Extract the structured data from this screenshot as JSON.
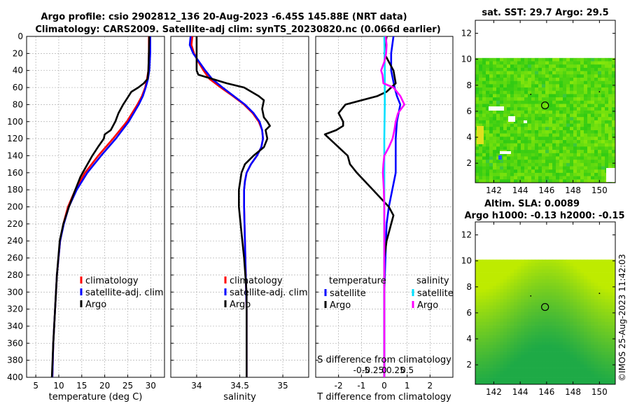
{
  "title_line1": "Argo profile: csio 2902812_136 20-Aug-2023 -6.45S 145.88E (NRT data)",
  "title_line2": "Climatology: CARS2009. Satellite-adj clim: synTS_20230820.nc (0.066d earlier)",
  "stamp": "©IMOS 25-Aug-2023 11:42:03",
  "colors": {
    "climatology": "#ff0000",
    "satellite": "#0000ff",
    "argo": "#000000",
    "s_satellite": "#00e0ff",
    "s_argo": "#ff00ff"
  },
  "chart_data": [
    {
      "type": "line",
      "id": "temperature",
      "xlabel": "temperature (deg C)",
      "ylabel": "",
      "xlim": [
        3,
        33
      ],
      "ylim": [
        400,
        0
      ],
      "xticks": [
        5,
        10,
        15,
        20,
        25,
        30
      ],
      "yticks": [
        0,
        20,
        40,
        60,
        80,
        100,
        120,
        140,
        160,
        180,
        200,
        220,
        240,
        260,
        280,
        300,
        320,
        340,
        360,
        380,
        400
      ],
      "grid": true,
      "legend": [
        "climatology",
        "satellite-adj. clim",
        "Argo"
      ],
      "series": [
        {
          "name": "climatology",
          "color": "#ff0000",
          "depth": [
            0,
            20,
            40,
            50,
            60,
            70,
            80,
            100,
            120,
            140,
            160,
            180,
            200,
            220,
            240,
            280,
            320,
            360,
            400
          ],
          "values": [
            29.6,
            29.6,
            29.5,
            29.2,
            28.8,
            28.1,
            27.1,
            24.8,
            21.8,
            18.6,
            15.7,
            13.6,
            12.0,
            11.0,
            10.3,
            9.6,
            9.2,
            8.8,
            8.6
          ]
        },
        {
          "name": "satellite-adj. clim",
          "color": "#0000ff",
          "depth": [
            0,
            20,
            40,
            50,
            60,
            70,
            80,
            100,
            120,
            140,
            160,
            180,
            200,
            220,
            240,
            280,
            320,
            360,
            400
          ],
          "values": [
            29.9,
            29.9,
            29.7,
            29.4,
            28.9,
            28.3,
            27.4,
            25.2,
            22.4,
            19.2,
            16.2,
            13.9,
            12.2,
            11.1,
            10.3,
            9.6,
            9.2,
            8.8,
            8.6
          ]
        },
        {
          "name": "Argo",
          "color": "#000000",
          "depth": [
            0,
            20,
            40,
            50,
            55,
            60,
            65,
            70,
            80,
            90,
            100,
            110,
            115,
            120,
            130,
            140,
            160,
            165,
            180,
            200,
            220,
            240,
            280,
            320,
            360,
            400
          ],
          "values": [
            29.7,
            29.6,
            29.5,
            29.3,
            28.5,
            27.3,
            25.8,
            25.2,
            24.0,
            23.0,
            22.3,
            21.3,
            20.0,
            19.8,
            18.5,
            17.3,
            15.2,
            14.7,
            13.6,
            12.2,
            11.0,
            10.2,
            9.6,
            9.2,
            8.8,
            8.5
          ]
        }
      ]
    },
    {
      "type": "line",
      "id": "salinity",
      "xlabel": "salinity",
      "ylabel": "",
      "xlim": [
        33.7,
        35.3
      ],
      "ylim": [
        400,
        0
      ],
      "xticks": [
        34,
        34.5,
        35
      ],
      "grid": true,
      "legend": [
        "climatology",
        "satellite-adj. clim",
        "Argo"
      ],
      "series": [
        {
          "name": "climatology",
          "color": "#ff0000",
          "depth": [
            0,
            10,
            20,
            30,
            40,
            50,
            60,
            70,
            80,
            90,
            100,
            110,
            120,
            130,
            140,
            150,
            160,
            170,
            180,
            200,
            240,
            280,
            320,
            360,
            400
          ],
          "values": [
            33.95,
            33.94,
            33.97,
            34.02,
            34.08,
            34.15,
            34.28,
            34.42,
            34.55,
            34.65,
            34.72,
            34.76,
            34.77,
            34.75,
            34.7,
            34.63,
            34.58,
            34.56,
            34.55,
            34.55,
            34.56,
            34.57,
            34.58,
            34.58,
            34.58
          ]
        },
        {
          "name": "satellite-adj. clim",
          "color": "#0000ff",
          "depth": [
            0,
            10,
            20,
            30,
            40,
            50,
            60,
            70,
            80,
            90,
            100,
            110,
            120,
            130,
            140,
            150,
            160,
            170,
            180,
            200,
            240,
            280,
            320,
            360,
            400
          ],
          "values": [
            33.93,
            33.92,
            33.96,
            34.03,
            34.1,
            34.18,
            34.3,
            34.43,
            34.56,
            34.66,
            34.73,
            34.76,
            34.77,
            34.75,
            34.7,
            34.63,
            34.58,
            34.56,
            34.55,
            34.55,
            34.56,
            34.57,
            34.58,
            34.58,
            34.58
          ]
        },
        {
          "name": "Argo",
          "color": "#000000",
          "depth": [
            0,
            20,
            40,
            45,
            55,
            60,
            70,
            75,
            85,
            95,
            100,
            105,
            110,
            120,
            130,
            140,
            150,
            160,
            180,
            200,
            220,
            260,
            300,
            340,
            400
          ],
          "values": [
            34.0,
            34.0,
            34.0,
            34.02,
            34.35,
            34.55,
            34.72,
            34.78,
            34.76,
            34.78,
            34.82,
            34.85,
            34.8,
            34.82,
            34.78,
            34.66,
            34.56,
            34.52,
            34.49,
            34.49,
            34.51,
            34.55,
            34.58,
            34.58,
            34.58
          ]
        }
      ]
    },
    {
      "type": "line",
      "id": "difference",
      "xlabel": "T difference from climatology",
      "xlabel_top": "S difference from climatology",
      "xlim": [
        -3,
        3
      ],
      "ylim": [
        400,
        0
      ],
      "xticks": [
        -2,
        -1,
        0,
        1,
        2
      ],
      "s_xticks": [
        -0.5,
        -0.25,
        0,
        0.25,
        0.5
      ],
      "s_tick_labels": [
        "-0.5",
        "-0.25",
        "0",
        "0.25",
        "0.5"
      ],
      "grid": true,
      "legend_t_title": "temperature",
      "legend_s_title": "salinity",
      "legend": [
        "satellite",
        "Argo",
        "satellite",
        "Argo"
      ],
      "series": [
        {
          "name": "T satellite",
          "color": "#0000ff",
          "depth": [
            0,
            20,
            40,
            60,
            70,
            80,
            100,
            120,
            140,
            160,
            180,
            200,
            220,
            260,
            300,
            400
          ],
          "values": [
            0.4,
            0.3,
            0.3,
            0.45,
            0.55,
            0.7,
            0.55,
            0.5,
            0.5,
            0.5,
            0.35,
            0.2,
            0.1,
            0.05,
            0.0,
            0.0
          ]
        },
        {
          "name": "T Argo",
          "color": "#000000",
          "depth": [
            0,
            20,
            40,
            55,
            65,
            70,
            80,
            90,
            100,
            105,
            110,
            115,
            120,
            130,
            140,
            150,
            160,
            180,
            200,
            210,
            220,
            240,
            260,
            300,
            400
          ],
          "values": [
            0.1,
            0.0,
            0.4,
            0.5,
            0.1,
            -0.3,
            -1.7,
            -2.0,
            -1.8,
            -1.8,
            -2.1,
            -2.6,
            -2.4,
            -2.0,
            -1.6,
            -1.5,
            -1.2,
            -0.5,
            0.2,
            0.4,
            0.3,
            0.1,
            0.0,
            0.0,
            0.0
          ]
        },
        {
          "name": "S satellite",
          "color": "#00e0ff",
          "depth": [
            0,
            40,
            80,
            120,
            160,
            200,
            240,
            300,
            400
          ],
          "values": [
            0.0,
            0.01,
            0.01,
            0.0,
            0.0,
            0.0,
            0.0,
            0.0,
            0.0
          ]
        },
        {
          "name": "S Argo",
          "color": "#ff00ff",
          "depth": [
            0,
            10,
            20,
            30,
            40,
            45,
            55,
            60,
            70,
            80,
            90,
            100,
            110,
            120,
            130,
            140,
            150,
            160,
            170,
            180,
            200,
            240,
            300,
            360,
            400
          ],
          "values": [
            0.03,
            0.05,
            0.04,
            0.0,
            -0.07,
            -0.04,
            -0.02,
            0.2,
            0.35,
            0.44,
            0.3,
            0.25,
            0.22,
            0.18,
            0.1,
            0.0,
            -0.02,
            -0.03,
            -0.02,
            -0.01,
            0.0,
            0.0,
            0.0,
            0.0,
            0.0
          ]
        }
      ]
    },
    {
      "type": "heatmap",
      "id": "sst_map",
      "title": "sat. SST: 29.7 Argo: 29.5",
      "xticks": [
        142,
        144,
        146,
        148,
        150
      ],
      "yticks": [
        2,
        4,
        6,
        8,
        10,
        12
      ],
      "xlim": [
        140.6,
        151.2
      ],
      "ylim": [
        0.5,
        13
      ],
      "data_extent_lat": [
        0.5,
        10.1
      ],
      "marker": {
        "lon": 145.88,
        "lat": 6.45
      }
    },
    {
      "type": "heatmap",
      "id": "sla_map",
      "title_line1": "Altim. SLA: 0.0089",
      "title_line2": "Argo h1000: -0.13 h2000: -0.15",
      "xticks": [
        142,
        144,
        146,
        148,
        150
      ],
      "yticks": [
        2,
        4,
        6,
        8,
        10,
        12
      ],
      "xlim": [
        140.6,
        151.2
      ],
      "ylim": [
        0.5,
        13
      ],
      "data_extent_lat": [
        0.5,
        10.1
      ],
      "marker": {
        "lon": 145.88,
        "lat": 6.45
      }
    }
  ]
}
